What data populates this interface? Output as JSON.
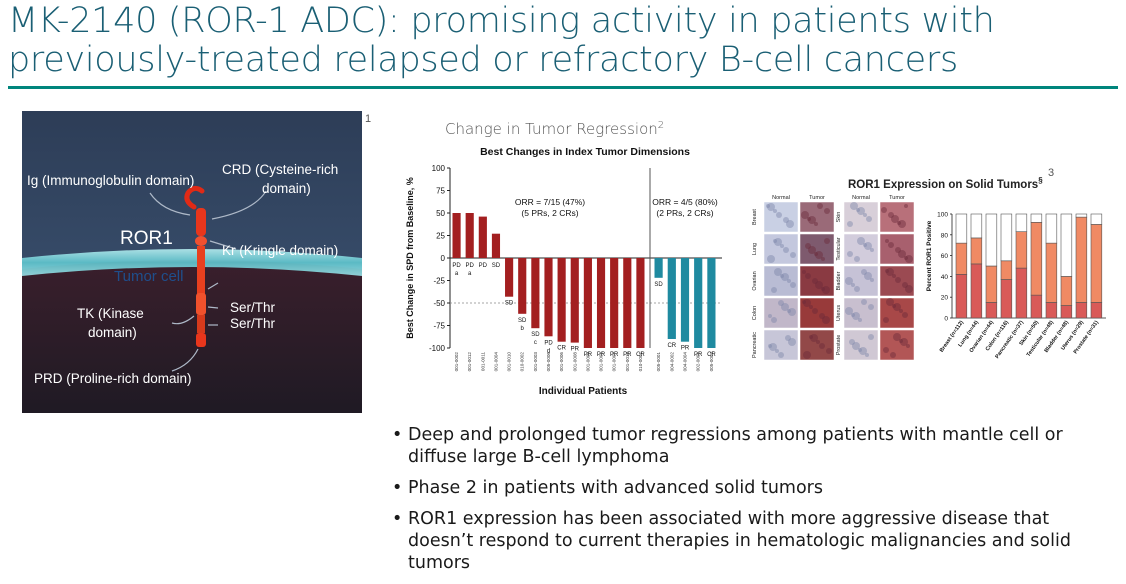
{
  "slide": {
    "title_line1": "MK-2140 (ROR-1 ADC): promising activity in patients with",
    "title_line2": "previously-treated relapsed or refractory B-cell cancers"
  },
  "diagram": {
    "footnote": "1",
    "protein_label": "ROR1",
    "membrane_label": "Tumor cell",
    "labels": {
      "ig": "Ig (Immunoglobulin domain)",
      "crd_line1": "CRD (Cysteine-rich",
      "crd_line2": "domain)",
      "kr": "Kr (Kringle domain)",
      "tk_line1": "TK (Kinase",
      "tk_line2": "domain)",
      "ser1": "Ser/Thr",
      "ser2": "Ser/Thr",
      "prd": "PRD (Proline-rich domain)"
    }
  },
  "waterfall": {
    "heading": "Change in Tumor Regression",
    "heading_sup": "2",
    "chart_data": {
      "type": "bar",
      "title": "Best Changes in Index Tumor Dimensions",
      "xlabel": "Individual Patients",
      "ylabel": "Best Change in SPD from Baseline, %",
      "ylim": [
        -100,
        100
      ],
      "yticks": [
        "100",
        "75",
        "50",
        "25",
        "0",
        "-25",
        "-50",
        "-75",
        "-100"
      ],
      "groups": [
        {
          "annotation_line1": "ORR = 7/15 (47%)",
          "annotation_line2": "(5 PRs, 2 CRs)",
          "color": "#a31f20",
          "patients": [
            "001-0002",
            "001-0012",
            "001-0011",
            "001-0004",
            "001-0010",
            "010-0002",
            "001-0003",
            "005-0006",
            "001-0006",
            "001-0008",
            "001-0009",
            "001-0001",
            "001-0007",
            "001-0013",
            "010-0001"
          ],
          "values": [
            50,
            50,
            46,
            27,
            -43,
            -62,
            -78,
            -87,
            -93,
            -94,
            -100,
            -100,
            -100,
            -100,
            -100
          ],
          "labels": [
            "PD a",
            "PD a",
            "PD",
            "SD",
            "SD",
            "SD b",
            "SD c",
            "PD d",
            "CR",
            "PR",
            "PR",
            "PR",
            "PR",
            "PR",
            "CR"
          ]
        },
        {
          "annotation_line1": "ORR = 4/5 (80%)",
          "annotation_line2": "(2 PRs, 2 CRs)",
          "color": "#1f8aa0",
          "patients": [
            "005-0001",
            "004-0002",
            "004-0004",
            "002-0001",
            "005-0003"
          ],
          "values": [
            -22,
            -90,
            -93,
            -100,
            -100
          ],
          "labels": [
            "SD",
            "CR",
            "PR",
            "PR",
            "CR"
          ]
        }
      ]
    }
  },
  "expression": {
    "title": "ROR1 Expression on Solid Tumors",
    "title_sup": "§",
    "footnote": "3",
    "histology": {
      "col_headers": [
        "Normal",
        "Tumor",
        "Normal",
        "Tumor"
      ],
      "left_tissues": [
        "Breast",
        "Lung",
        "Ovarian",
        "Colon",
        "Pancreatic"
      ],
      "right_tissues": [
        "Skin",
        "Testicular",
        "Bladder",
        "Uterus",
        "Prostate"
      ]
    },
    "chart_data": {
      "type": "bar",
      "ylabel": "Percent ROR1 Positive",
      "ylim": [
        0,
        100
      ],
      "yticks": [
        "0",
        "20",
        "40",
        "60",
        "80",
        "100"
      ],
      "categories": [
        "Breast (n=112)",
        "Lung (n=44)",
        "Ovarian (n=44)",
        "Colon (n=116)",
        "Pancreatic (n=37)",
        "Skin (n=50)",
        "Testicular (n=48)",
        "Bladder (n=48)",
        "Uterus (n=29)",
        "Prostate (n=31)"
      ],
      "series": [
        {
          "values": [
            42,
            52,
            15,
            37,
            48,
            22,
            15,
            12,
            15,
            15
          ],
          "color": "#d95a58"
        },
        {
          "values": [
            30,
            25,
            35,
            18,
            35,
            70,
            57,
            28,
            82,
            75
          ],
          "color": "#f08a64"
        },
        {
          "values": [
            28,
            23,
            50,
            45,
            17,
            8,
            28,
            60,
            3,
            10
          ],
          "color": "#ffffff"
        }
      ]
    }
  },
  "bullets": [
    "Deep and prolonged tumor regressions among patients with mantle cell or diffuse large B-cell lymphoma",
    "Phase 2 in patients with advanced solid tumors",
    "ROR1 expression has been associated with more aggressive disease that doesn’t respond to current therapies in hematologic malignancies and solid tumors"
  ]
}
